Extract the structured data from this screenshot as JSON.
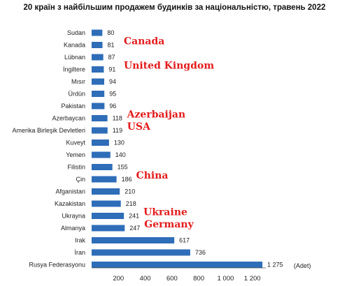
{
  "chart_data": {
    "type": "bar",
    "orientation": "horizontal",
    "title": "20 країн з найбільшим продажем будинків за національністю, травень 2022",
    "categories": [
      "Sudan",
      "Kanada",
      "Lübnan",
      "İngiltere",
      "Mısır",
      "Ürdün",
      "Pakistan",
      "Azerbaycan",
      "Amerika Birleşik Devletleri",
      "Kuveyt",
      "Yemen",
      "Filistin",
      "Çin",
      "Afganistan",
      "Kazakistan",
      "Ukrayna",
      "Almanya",
      "Irak",
      "İran",
      "Rusya Federasyonu"
    ],
    "values": [
      80,
      81,
      87,
      91,
      94,
      95,
      96,
      118,
      119,
      130,
      140,
      155,
      186,
      210,
      218,
      241,
      247,
      617,
      736,
      1275
    ],
    "value_labels": [
      "80",
      "81",
      "87",
      "91",
      "94",
      "95",
      "96",
      "118",
      "119",
      "130",
      "140",
      "155",
      "186",
      "210",
      "218",
      "241",
      "247",
      "617",
      "736",
      "1 275"
    ],
    "x_ticks": [
      200,
      400,
      600,
      800,
      1000,
      1200
    ],
    "x_tick_labels": [
      "200",
      "400",
      "600",
      "800",
      "1 000",
      "1 200"
    ],
    "xlim": [
      0,
      1300
    ],
    "unit_label": "(Adet)",
    "bar_color": "#2e6db8",
    "grid": false,
    "annotations": [
      {
        "text": "Canada",
        "category": "Kanada"
      },
      {
        "text": "United Kingdom",
        "category": "İngiltere"
      },
      {
        "text": "Azerbaijan",
        "category": "Azerbaycan"
      },
      {
        "text": "USA",
        "category": "Amerika Birleşik Devletleri"
      },
      {
        "text": "China",
        "category": "Çin"
      },
      {
        "text": "Ukraine",
        "category": "Ukrayna"
      },
      {
        "text": "Germany",
        "category": "Almanya"
      }
    ],
    "annotation_color": "#e31b1b"
  }
}
